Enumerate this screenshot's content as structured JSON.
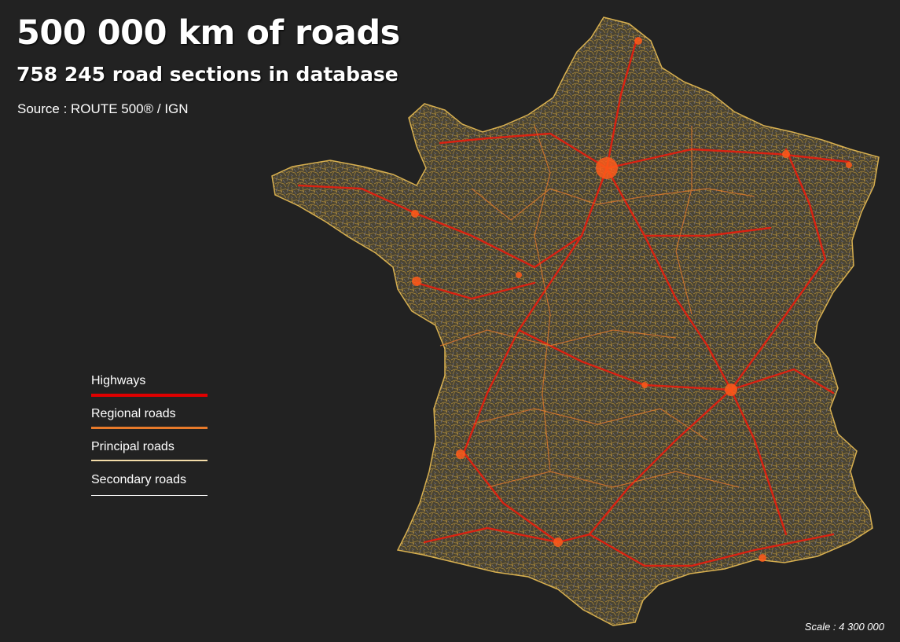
{
  "header": {
    "title": "500 000 km of roads",
    "subtitle": "758 245 road sections in database",
    "source": "Source : ROUTE 500® / IGN"
  },
  "legend": {
    "items": [
      {
        "label": "Highways",
        "color": "#e00000"
      },
      {
        "label": "Regional roads",
        "color": "#e87a2a"
      },
      {
        "label": "Principal roads",
        "color": "#f3dca8"
      },
      {
        "label": "Secondary roads",
        "color": "#ffffff"
      }
    ]
  },
  "map": {
    "background_color": "#222222",
    "land_color": "#4a4434",
    "dense_road_color": "#c9a040",
    "highway_color": "#e02010",
    "city_color": "#ff6020"
  },
  "footer": {
    "scale": "Scale : 4 300 000"
  }
}
